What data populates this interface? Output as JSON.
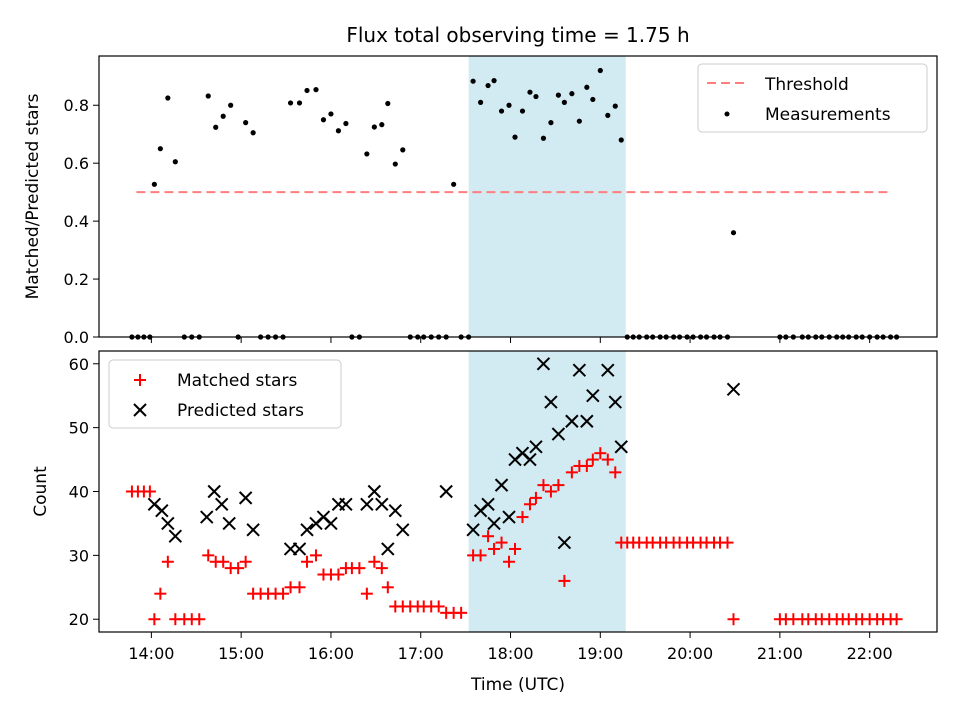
{
  "figure": {
    "title": "Flux total observing time = 1.75 h",
    "xlabel": "Time (UTC)"
  },
  "highlight": {
    "start": "17:32",
    "end": "19:17",
    "color": "#add8e6"
  },
  "chart_data": [
    {
      "type": "scatter",
      "ylabel": "Matched/Predicted stars",
      "xlim": [
        "13:25",
        "22:45"
      ],
      "ylim": [
        0,
        0.97
      ],
      "yticks": [
        0.0,
        0.2,
        0.4,
        0.6,
        0.8
      ],
      "legend_position": "top-right",
      "threshold": {
        "name": "Threshold",
        "value": 0.5,
        "x_start": "13:50",
        "x_end": "22:15",
        "color": "#ff7f7f"
      },
      "series": [
        {
          "name": "Measurements",
          "color": "#000000",
          "points": [
            [
              "13:47",
              0
            ],
            [
              "13:51",
              0
            ],
            [
              "13:55",
              0
            ],
            [
              "13:59",
              0
            ],
            [
              "14:02",
              0.527
            ],
            [
              "14:06",
              0.65
            ],
            [
              "14:11",
              0.825
            ],
            [
              "14:16",
              0.605
            ],
            [
              "14:22",
              0
            ],
            [
              "14:27",
              0
            ],
            [
              "14:32",
              0
            ],
            [
              "14:38",
              0.832
            ],
            [
              "14:43",
              0.724
            ],
            [
              "14:48",
              0.762
            ],
            [
              "14:53",
              0.8
            ],
            [
              "14:58",
              0
            ],
            [
              "15:03",
              0.74
            ],
            [
              "15:08",
              0.705
            ],
            [
              "15:13",
              0
            ],
            [
              "15:18",
              0
            ],
            [
              "15:23",
              0
            ],
            [
              "15:28",
              0
            ],
            [
              "15:33",
              0.808
            ],
            [
              "15:39",
              0.808
            ],
            [
              "15:44",
              0.851
            ],
            [
              "15:50",
              0.854
            ],
            [
              "15:55",
              0.75
            ],
            [
              "16:00",
              0.77
            ],
            [
              "16:05",
              0.712
            ],
            [
              "16:10",
              0.737
            ],
            [
              "16:14",
              0
            ],
            [
              "16:19",
              0
            ],
            [
              "16:24",
              0.632
            ],
            [
              "16:29",
              0.725
            ],
            [
              "16:34",
              0.733
            ],
            [
              "16:38",
              0.806
            ],
            [
              "16:43",
              0.597
            ],
            [
              "16:48",
              0.646
            ],
            [
              "16:53",
              0
            ],
            [
              "16:58",
              0
            ],
            [
              "17:02",
              0
            ],
            [
              "17:07",
              0
            ],
            [
              "17:12",
              0
            ],
            [
              "17:17",
              0
            ],
            [
              "17:22",
              0.527
            ],
            [
              "17:27",
              0
            ],
            [
              "17:32",
              0
            ],
            [
              "17:35",
              0.883
            ],
            [
              "17:40",
              0.81
            ],
            [
              "17:45",
              0.868
            ],
            [
              "17:49",
              0.885
            ],
            [
              "17:54",
              0.78
            ],
            [
              "17:59",
              0.8
            ],
            [
              "18:03",
              0.69
            ],
            [
              "18:08",
              0.78
            ],
            [
              "18:13",
              0.845
            ],
            [
              "18:17",
              0.83
            ],
            [
              "18:22",
              0.686
            ],
            [
              "18:27",
              0.74
            ],
            [
              "18:32",
              0.835
            ],
            [
              "18:36",
              0.81
            ],
            [
              "18:41",
              0.84
            ],
            [
              "18:46",
              0.745
            ],
            [
              "18:51",
              0.862
            ],
            [
              "18:55",
              0.82
            ],
            [
              "19:00",
              0.92
            ],
            [
              "19:05",
              0.765
            ],
            [
              "19:10",
              0.797
            ],
            [
              "19:14",
              0.68
            ],
            [
              "19:18",
              0
            ],
            [
              "19:22",
              0
            ],
            [
              "19:26",
              0
            ],
            [
              "19:31",
              0
            ],
            [
              "19:35",
              0
            ],
            [
              "19:40",
              0
            ],
            [
              "19:44",
              0
            ],
            [
              "19:49",
              0
            ],
            [
              "19:53",
              0
            ],
            [
              "19:58",
              0
            ],
            [
              "20:02",
              0
            ],
            [
              "20:07",
              0
            ],
            [
              "20:11",
              0
            ],
            [
              "20:16",
              0
            ],
            [
              "20:20",
              0
            ],
            [
              "20:25",
              0
            ],
            [
              "20:29",
              0.36
            ],
            [
              "21:00",
              0
            ],
            [
              "21:04",
              0
            ],
            [
              "21:09",
              0
            ],
            [
              "21:15",
              0
            ],
            [
              "21:19",
              0
            ],
            [
              "21:24",
              0
            ],
            [
              "21:28",
              0
            ],
            [
              "21:33",
              0
            ],
            [
              "21:38",
              0
            ],
            [
              "21:42",
              0
            ],
            [
              "21:46",
              0
            ],
            [
              "21:51",
              0
            ],
            [
              "21:55",
              0
            ],
            [
              "22:00",
              0
            ],
            [
              "22:05",
              0
            ],
            [
              "22:09",
              0
            ],
            [
              "22:14",
              0
            ],
            [
              "22:18",
              0
            ]
          ]
        }
      ]
    },
    {
      "type": "scatter",
      "ylabel": "Count",
      "xlim": [
        "13:25",
        "22:45"
      ],
      "ylim": [
        18,
        62
      ],
      "yticks": [
        20,
        30,
        40,
        50,
        60
      ],
      "xticks": [
        "14:00",
        "15:00",
        "16:00",
        "17:00",
        "18:00",
        "19:00",
        "20:00",
        "21:00",
        "22:00"
      ],
      "legend_position": "top-left",
      "series": [
        {
          "name": "Matched stars",
          "marker": "plus",
          "color": "#ff0000",
          "points": [
            [
              "13:47",
              40
            ],
            [
              "13:51",
              40
            ],
            [
              "13:55",
              40
            ],
            [
              "13:59",
              40
            ],
            [
              "14:02",
              20
            ],
            [
              "14:06",
              24
            ],
            [
              "14:11",
              29
            ],
            [
              "14:16",
              20
            ],
            [
              "14:22",
              20
            ],
            [
              "14:27",
              20
            ],
            [
              "14:32",
              20
            ],
            [
              "14:38",
              30
            ],
            [
              "14:43",
              29
            ],
            [
              "14:48",
              29
            ],
            [
              "14:53",
              28
            ],
            [
              "14:58",
              28
            ],
            [
              "15:03",
              29
            ],
            [
              "15:08",
              24
            ],
            [
              "15:13",
              24
            ],
            [
              "15:18",
              24
            ],
            [
              "15:23",
              24
            ],
            [
              "15:28",
              24
            ],
            [
              "15:33",
              25
            ],
            [
              "15:39",
              25
            ],
            [
              "15:44",
              29
            ],
            [
              "15:50",
              30
            ],
            [
              "15:55",
              27
            ],
            [
              "16:00",
              27
            ],
            [
              "16:05",
              27
            ],
            [
              "16:10",
              28
            ],
            [
              "16:14",
              28
            ],
            [
              "16:19",
              28
            ],
            [
              "16:24",
              24
            ],
            [
              "16:29",
              29
            ],
            [
              "16:34",
              28
            ],
            [
              "16:38",
              25
            ],
            [
              "16:43",
              22
            ],
            [
              "16:48",
              22
            ],
            [
              "16:53",
              22
            ],
            [
              "16:58",
              22
            ],
            [
              "17:02",
              22
            ],
            [
              "17:07",
              22
            ],
            [
              "17:12",
              22
            ],
            [
              "17:17",
              21
            ],
            [
              "17:22",
              21
            ],
            [
              "17:27",
              21
            ],
            [
              "17:35",
              30
            ],
            [
              "17:40",
              30
            ],
            [
              "17:45",
              33
            ],
            [
              "17:49",
              31
            ],
            [
              "17:54",
              32
            ],
            [
              "17:59",
              29
            ],
            [
              "18:03",
              31
            ],
            [
              "18:08",
              36
            ],
            [
              "18:13",
              38
            ],
            [
              "18:17",
              39
            ],
            [
              "18:22",
              41
            ],
            [
              "18:27",
              40
            ],
            [
              "18:32",
              41
            ],
            [
              "18:36",
              26
            ],
            [
              "18:41",
              43
            ],
            [
              "18:46",
              44
            ],
            [
              "18:51",
              44
            ],
            [
              "18:55",
              45
            ],
            [
              "19:00",
              46
            ],
            [
              "19:05",
              45
            ],
            [
              "19:10",
              43
            ],
            [
              "19:14",
              32
            ],
            [
              "19:18",
              32
            ],
            [
              "19:22",
              32
            ],
            [
              "19:26",
              32
            ],
            [
              "19:31",
              32
            ],
            [
              "19:35",
              32
            ],
            [
              "19:40",
              32
            ],
            [
              "19:44",
              32
            ],
            [
              "19:49",
              32
            ],
            [
              "19:53",
              32
            ],
            [
              "19:58",
              32
            ],
            [
              "20:02",
              32
            ],
            [
              "20:07",
              32
            ],
            [
              "20:11",
              32
            ],
            [
              "20:16",
              32
            ],
            [
              "20:20",
              32
            ],
            [
              "20:25",
              32
            ],
            [
              "20:29",
              20
            ],
            [
              "21:00",
              20
            ],
            [
              "21:04",
              20
            ],
            [
              "21:09",
              20
            ],
            [
              "21:15",
              20
            ],
            [
              "21:19",
              20
            ],
            [
              "21:24",
              20
            ],
            [
              "21:28",
              20
            ],
            [
              "21:33",
              20
            ],
            [
              "21:38",
              20
            ],
            [
              "21:42",
              20
            ],
            [
              "21:46",
              20
            ],
            [
              "21:51",
              20
            ],
            [
              "21:55",
              20
            ],
            [
              "22:00",
              20
            ],
            [
              "22:05",
              20
            ],
            [
              "22:09",
              20
            ],
            [
              "22:14",
              20
            ],
            [
              "22:18",
              20
            ]
          ]
        },
        {
          "name": "Predicted stars",
          "marker": "x",
          "color": "#000000",
          "points": [
            [
              "14:02",
              38
            ],
            [
              "14:07",
              37
            ],
            [
              "14:11",
              35
            ],
            [
              "14:16",
              33
            ],
            [
              "14:37",
              36
            ],
            [
              "14:42",
              40
            ],
            [
              "14:47",
              38
            ],
            [
              "14:52",
              35
            ],
            [
              "15:03",
              39
            ],
            [
              "15:08",
              34
            ],
            [
              "15:33",
              31
            ],
            [
              "15:39",
              31
            ],
            [
              "15:44",
              34
            ],
            [
              "15:50",
              35
            ],
            [
              "15:55",
              36
            ],
            [
              "16:00",
              35
            ],
            [
              "16:05",
              38
            ],
            [
              "16:10",
              38
            ],
            [
              "16:24",
              38
            ],
            [
              "16:29",
              40
            ],
            [
              "16:34",
              38
            ],
            [
              "16:38",
              31
            ],
            [
              "16:43",
              37
            ],
            [
              "16:48",
              34
            ],
            [
              "17:17",
              40
            ],
            [
              "17:35",
              34
            ],
            [
              "17:40",
              37
            ],
            [
              "17:45",
              38
            ],
            [
              "17:49",
              35
            ],
            [
              "17:54",
              41
            ],
            [
              "17:59",
              36
            ],
            [
              "18:03",
              45
            ],
            [
              "18:08",
              46
            ],
            [
              "18:13",
              45
            ],
            [
              "18:17",
              47
            ],
            [
              "18:22",
              60
            ],
            [
              "18:27",
              54
            ],
            [
              "18:32",
              49
            ],
            [
              "18:36",
              32
            ],
            [
              "18:41",
              51
            ],
            [
              "18:46",
              59
            ],
            [
              "18:51",
              51
            ],
            [
              "18:55",
              55
            ],
            [
              "19:05",
              59
            ],
            [
              "19:10",
              54
            ],
            [
              "19:14",
              47
            ],
            [
              "20:29",
              56
            ]
          ]
        }
      ]
    }
  ]
}
